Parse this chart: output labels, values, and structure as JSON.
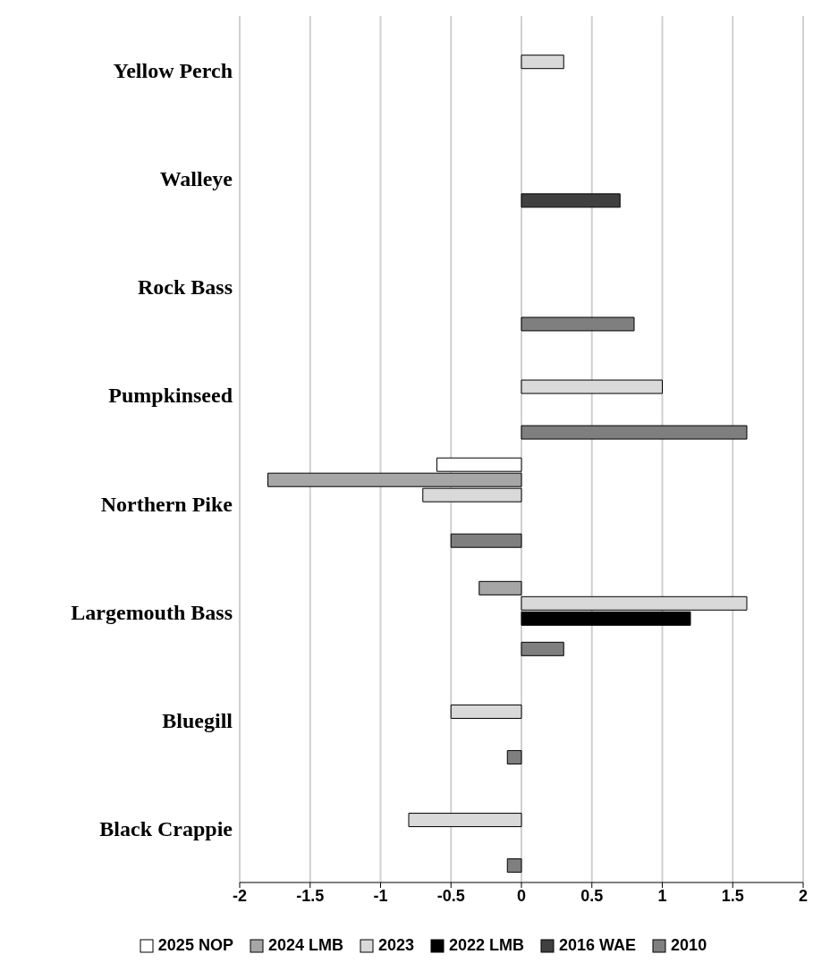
{
  "chart_data": {
    "type": "bar",
    "orientation": "horizontal",
    "categories": [
      "Yellow Perch",
      "Walleye",
      "Rock Bass",
      "Pumpkinseed",
      "Northern Pike",
      "Largemouth Bass",
      "Bluegill",
      "Black Crappie"
    ],
    "series": [
      {
        "name": "2025 NOP",
        "color": "#ffffff",
        "values": [
          null,
          null,
          null,
          null,
          -0.6,
          null,
          null,
          null
        ]
      },
      {
        "name": "2024 LMB",
        "color": "#a6a6a6",
        "values": [
          null,
          null,
          null,
          null,
          -1.8,
          -0.3,
          null,
          null
        ]
      },
      {
        "name": "2023",
        "color": "#d9d9d9",
        "values": [
          0.3,
          null,
          null,
          1.0,
          -0.7,
          1.6,
          -0.5,
          -0.8
        ]
      },
      {
        "name": "2022 LMB",
        "color": "#000000",
        "values": [
          null,
          null,
          null,
          null,
          null,
          1.2,
          null,
          null
        ]
      },
      {
        "name": "2016 WAE",
        "color": "#404040",
        "values": [
          null,
          0.7,
          null,
          null,
          null,
          null,
          null,
          null
        ]
      },
      {
        "name": "2010",
        "color": "#7f7f7f",
        "values": [
          null,
          null,
          0.8,
          1.6,
          -0.5,
          0.3,
          -0.1,
          -0.1
        ]
      }
    ],
    "xlim": [
      -2,
      2
    ],
    "xticks": [
      -2,
      -1.5,
      -1,
      -0.5,
      0,
      0.5,
      1,
      1.5,
      2
    ],
    "grid": "x",
    "legend": "bottom"
  }
}
